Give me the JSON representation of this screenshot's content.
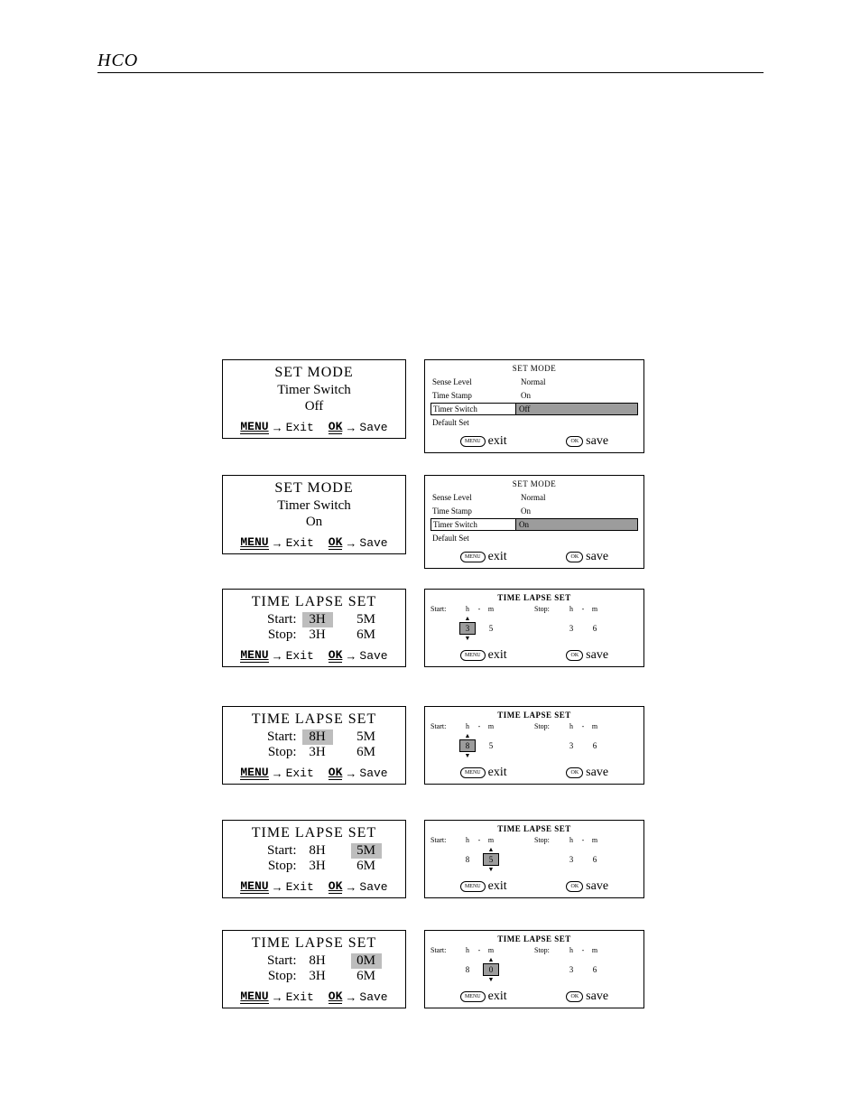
{
  "header": "HCO",
  "common": {
    "menu": "MENU",
    "ok": "OK",
    "exit": "Exit",
    "save": "Save",
    "exit_lc": "exit",
    "save_lc": "save",
    "arrow": "→",
    "set_mode": "SET MODE",
    "time_lapse_set": "TIME LAPSE SET",
    "timer_switch": "Timer Switch",
    "sense_level": "Sense Level",
    "time_stamp": "Time Stamp",
    "default_set": "Default Set",
    "normal": "Normal",
    "on": "On",
    "off": "Off",
    "start": "Start:",
    "stop": "Stop:",
    "h_lbl": "h",
    "m_lbl": "m",
    "dash": "-",
    "tri_up": "▲",
    "tri_dn": "▼"
  },
  "rows": [
    {
      "type": "setmode",
      "left": {
        "sub1": "Timer Switch",
        "sub2": "Off"
      },
      "right": {
        "timer_val": "Off"
      }
    },
    {
      "type": "setmode",
      "left": {
        "sub1": "Timer Switch",
        "sub2": "On"
      },
      "right": {
        "timer_val": "On"
      }
    },
    {
      "type": "tls",
      "left": {
        "start_h": "3H",
        "start_m": "5M",
        "stop_h": "3H",
        "stop_m": "6M",
        "hl": "start_h"
      },
      "right": {
        "s_h": "3",
        "s_m": "5",
        "t_h": "3",
        "t_m": "6",
        "sel": "s_h"
      }
    },
    {
      "type": "tls",
      "left": {
        "start_h": "8H",
        "start_m": "5M",
        "stop_h": "3H",
        "stop_m": "6M",
        "hl": "start_h"
      },
      "right": {
        "s_h": "8",
        "s_m": "5",
        "t_h": "3",
        "t_m": "6",
        "sel": "s_h"
      }
    },
    {
      "type": "tls",
      "left": {
        "start_h": "8H",
        "start_m": "5M",
        "stop_h": "3H",
        "stop_m": "6M",
        "hl": "start_m"
      },
      "right": {
        "s_h": "8",
        "s_m": "5",
        "t_h": "3",
        "t_m": "6",
        "sel": "s_m"
      }
    },
    {
      "type": "tls",
      "left": {
        "start_h": "8H",
        "start_m": "0M",
        "stop_h": "3H",
        "stop_m": "6M",
        "hl": "start_m"
      },
      "right": {
        "s_h": "8",
        "s_m": "0",
        "t_h": "3",
        "t_m": "6",
        "sel": "s_m"
      }
    }
  ],
  "row_tops": [
    398,
    526,
    652,
    782,
    908,
    1030
  ]
}
